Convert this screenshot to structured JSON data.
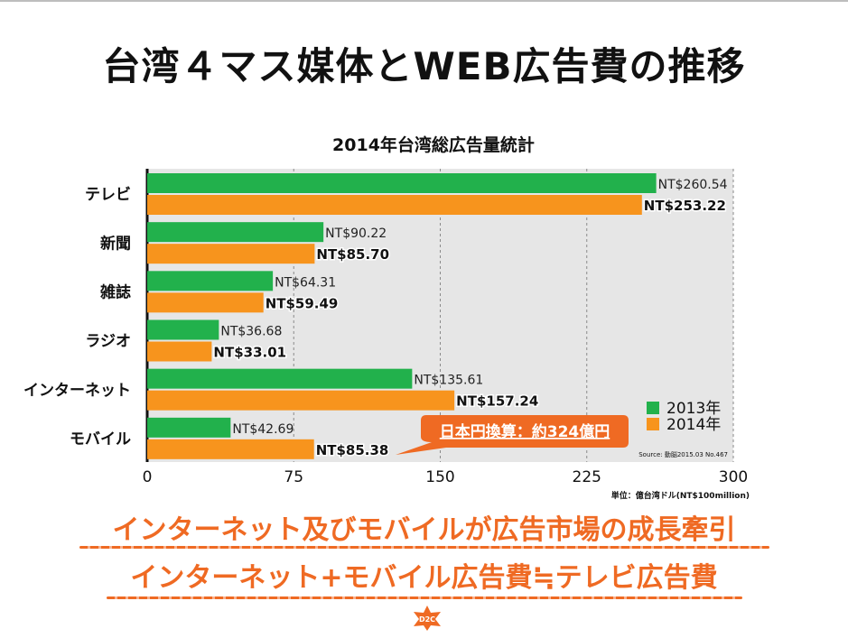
{
  "slide": {
    "title": "台湾４マス媒体とWEB広告費の推移",
    "notes": [
      "インターネット及びモバイルが広告市場の成長牽引",
      "インターネット+モバイル広告費≒テレビ広告費"
    ],
    "logo_text": "D2C"
  },
  "colors": {
    "series_2013": "#22b14c",
    "series_2014": "#f7941d",
    "plot_bg": "#e6e6e6",
    "accent": "#ef6a23"
  },
  "chart_data": {
    "type": "bar",
    "orientation": "horizontal",
    "title": "2014年台湾総広告量統計",
    "categories": [
      "テレビ",
      "新聞",
      "雑誌",
      "ラジオ",
      "インターネット",
      "モバイル"
    ],
    "series": [
      {
        "name": "2013年",
        "values": [
          260.54,
          90.22,
          64.31,
          36.68,
          135.61,
          42.69
        ],
        "labels": [
          "NT$260.54",
          "NT$90.22",
          "NT$64.31",
          "NT$36.68",
          "NT$135.61",
          "NT$42.69"
        ]
      },
      {
        "name": "2014年",
        "values": [
          253.22,
          85.7,
          59.49,
          33.01,
          157.24,
          85.38
        ],
        "labels": [
          "NT$253.22",
          "NT$85.70",
          "NT$59.49",
          "NT$33.01",
          "NT$157.24",
          "NT$85.38"
        ]
      }
    ],
    "xlim": [
      0,
      300
    ],
    "xticks": [
      "0",
      "75",
      "150",
      "225",
      "300"
    ],
    "xtick_values": [
      0,
      75,
      150,
      225,
      300
    ],
    "unit_label": "単位：億台湾ドル(NT$100million)",
    "source": "Source: 動脳2015.03 No.467",
    "callout": "日本円換算：約324億円",
    "grid": "vertical dashed",
    "legend_position": "bottom-right"
  }
}
